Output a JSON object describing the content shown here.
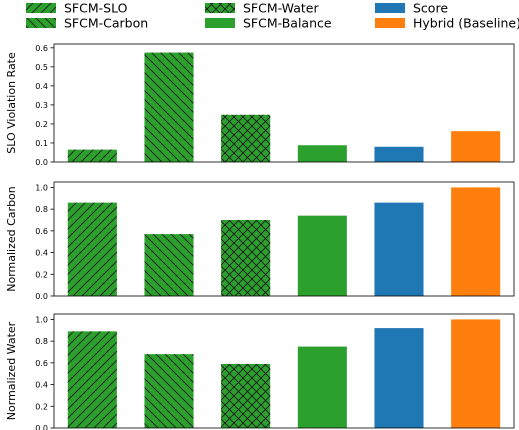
{
  "legend": {
    "placement": "top",
    "entries": [
      {
        "name": "SFCM-SLO",
        "color": "#2ca02c",
        "hatch": "diag-forward"
      },
      {
        "name": "SFCM-Water",
        "color": "#2ca02c",
        "hatch": "cross"
      },
      {
        "name": "Score",
        "color": "#1f77b4",
        "hatch": "none"
      },
      {
        "name": "SFCM-Carbon",
        "color": "#2ca02c",
        "hatch": "diag-back"
      },
      {
        "name": "SFCM-Balance",
        "color": "#2ca02c",
        "hatch": "none"
      },
      {
        "name": "Hybrid (Baseline)",
        "color": "#ff7f0e",
        "hatch": "none"
      }
    ]
  },
  "chart_data": [
    {
      "type": "bar",
      "categories": [
        "SFCM-SLO",
        "SFCM-Carbon",
        "SFCM-Water",
        "SFCM-Balance",
        "Score",
        "Hybrid (Baseline)"
      ],
      "values": [
        0.065,
        0.575,
        0.248,
        0.088,
        0.08,
        0.162
      ],
      "ylabel": "SLO Violation Rate",
      "ylim": [
        0,
        0.62
      ],
      "yticks": [
        "0.0",
        "0.1",
        "0.2",
        "0.3",
        "0.4",
        "0.5",
        "0.6"
      ],
      "ytick_values": [
        0,
        0.1,
        0.2,
        0.3,
        0.4,
        0.5,
        0.6
      ],
      "grid": false
    },
    {
      "type": "bar",
      "categories": [
        "SFCM-SLO",
        "SFCM-Carbon",
        "SFCM-Water",
        "SFCM-Balance",
        "Score",
        "Hybrid (Baseline)"
      ],
      "values": [
        0.86,
        0.57,
        0.7,
        0.74,
        0.86,
        1.0
      ],
      "ylabel": "Normalized Carbon",
      "ylim": [
        0,
        1.05
      ],
      "yticks": [
        "0.0",
        "0.2",
        "0.4",
        "0.6",
        "0.8",
        "1.0"
      ],
      "ytick_values": [
        0,
        0.2,
        0.4,
        0.6,
        0.8,
        1.0
      ],
      "grid": false
    },
    {
      "type": "bar",
      "categories": [
        "SFCM-SLO",
        "SFCM-Carbon",
        "SFCM-Water",
        "SFCM-Balance",
        "Score",
        "Hybrid (Baseline)"
      ],
      "values": [
        0.89,
        0.68,
        0.59,
        0.75,
        0.92,
        1.0
      ],
      "ylabel": "Normalized Water",
      "ylim": [
        0,
        1.05
      ],
      "yticks": [
        "0.0",
        "0.2",
        "0.4",
        "0.6",
        "0.8",
        "1.0"
      ],
      "ytick_values": [
        0,
        0.2,
        0.4,
        0.6,
        0.8,
        1.0
      ],
      "grid": false
    }
  ],
  "bar_styles": [
    {
      "color": "#2ca02c",
      "hatch": "diag-forward"
    },
    {
      "color": "#2ca02c",
      "hatch": "diag-back"
    },
    {
      "color": "#2ca02c",
      "hatch": "cross"
    },
    {
      "color": "#2ca02c",
      "hatch": "none"
    },
    {
      "color": "#1f77b4",
      "hatch": "none"
    },
    {
      "color": "#ff7f0e",
      "hatch": "none"
    }
  ]
}
